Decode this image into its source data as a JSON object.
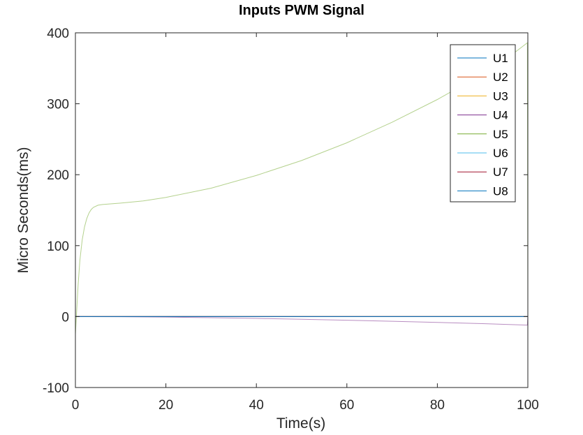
{
  "chart_data": {
    "type": "line",
    "title": "Inputs PWM Signal",
    "xlabel": "Time(s)",
    "ylabel": "Micro Seconds(ms)",
    "xlim": [
      0,
      100
    ],
    "ylim": [
      -100,
      400
    ],
    "xticks": [
      0,
      20,
      40,
      60,
      80,
      100
    ],
    "yticks": [
      -100,
      0,
      100,
      200,
      300,
      400
    ],
    "xtick_labels": [
      "0",
      "20",
      "40",
      "60",
      "80",
      "100"
    ],
    "ytick_labels": [
      "-100",
      "0",
      "100",
      "200",
      "300",
      "400"
    ],
    "grid": false,
    "legend_position": "top-right",
    "series": [
      {
        "name": "U1",
        "color": "#0072BD",
        "x": [
          0,
          100
        ],
        "y": [
          0,
          0
        ]
      },
      {
        "name": "U2",
        "color": "#D95319",
        "x": [
          0,
          100
        ],
        "y": [
          0,
          0
        ]
      },
      {
        "name": "U3",
        "color": "#EDB120",
        "x": [
          0,
          100
        ],
        "y": [
          0,
          0
        ]
      },
      {
        "name": "U4",
        "color": "#7E2F8E",
        "x": [
          0,
          10,
          20,
          30,
          40,
          50,
          60,
          70,
          80,
          90,
          99.9,
          100
        ],
        "y": [
          0,
          -0.2,
          -0.7,
          -1.6,
          -2.6,
          -3.8,
          -5.1,
          -6.6,
          -8.2,
          -10,
          -12,
          0
        ]
      },
      {
        "name": "U5",
        "color": "#77AC30",
        "x": [
          0,
          0.3,
          0.6,
          1,
          1.5,
          2,
          2.5,
          3,
          3.5,
          4,
          5,
          6,
          8,
          10,
          15,
          20,
          30,
          40,
          50,
          60,
          70,
          80,
          90,
          95,
          99.9,
          100
        ],
        "y": [
          -25,
          10,
          45,
          80,
          108,
          126,
          138,
          146,
          151,
          154,
          157,
          158,
          159,
          160,
          163,
          168,
          181,
          199,
          220,
          245,
          274,
          306,
          342,
          362,
          386,
          0
        ]
      },
      {
        "name": "U6",
        "color": "#4DBEEE",
        "x": [
          0,
          100
        ],
        "y": [
          0,
          0
        ]
      },
      {
        "name": "U7",
        "color": "#A2142F",
        "x": [
          0,
          100
        ],
        "y": [
          0,
          0
        ]
      },
      {
        "name": "U8",
        "color": "#0072BD",
        "x": [
          0,
          100
        ],
        "y": [
          0,
          0
        ]
      }
    ]
  }
}
